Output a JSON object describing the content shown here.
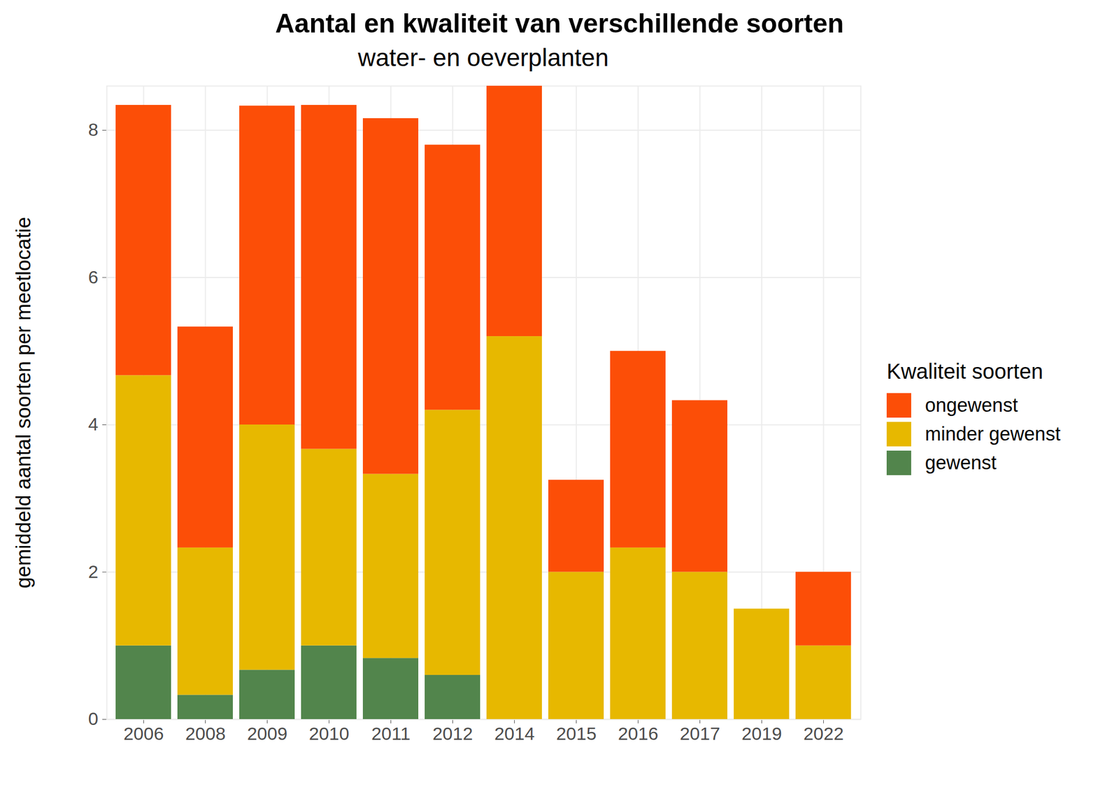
{
  "chart_data": {
    "type": "bar",
    "title": "Aantal en kwaliteit van verschillende soorten",
    "subtitle": "water- en oeverplanten",
    "y_label": "gemiddeld aantal soorten per meetlocatie",
    "legend_title": "Kwaliteit soorten",
    "categories": [
      "2006",
      "2008",
      "2009",
      "2010",
      "2011",
      "2012",
      "2014",
      "2015",
      "2016",
      "2017",
      "2019",
      "2022"
    ],
    "series": [
      {
        "name": "ongewenst",
        "color": "#FC4E07",
        "values": [
          3.67,
          3,
          4.33,
          4.67,
          4.83,
          3.6,
          3.4,
          1.25,
          2.67,
          2.33,
          0,
          1
        ]
      },
      {
        "name": "minder gewenst",
        "color": "#E7B800",
        "values": [
          3.67,
          2,
          3.33,
          2.67,
          2.5,
          3.6,
          5.2,
          2,
          2.33,
          2,
          1.5,
          1
        ]
      },
      {
        "name": "gewenst",
        "color": "#52854C",
        "values": [
          1,
          0.33,
          0.67,
          1,
          0.83,
          0.6,
          0,
          0,
          0,
          0,
          0,
          0
        ]
      }
    ],
    "stacked": true,
    "ylim": [
      0,
      8.6
    ],
    "yticks": [
      0,
      2,
      4,
      6,
      8
    ],
    "grid": true,
    "legend": "right"
  }
}
